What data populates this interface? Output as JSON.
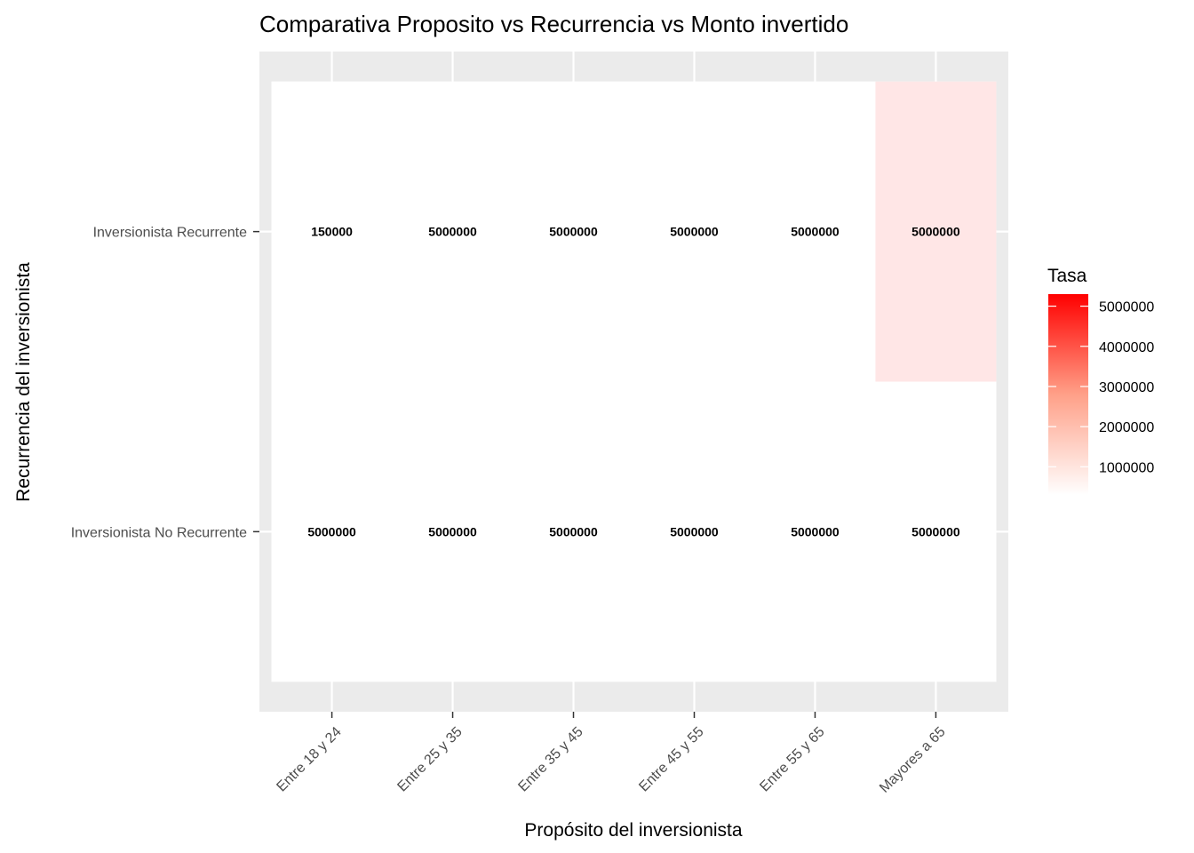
{
  "chart_data": {
    "type": "heatmap",
    "title": "Comparativa Proposito vs Recurrencia vs Monto invertido",
    "xlabel": "Propósito del inversionista",
    "ylabel": "Recurrencia del inversionista",
    "x_categories": [
      "Entre 18 y 24",
      "Entre 25 y 35",
      "Entre 35 y 45",
      "Entre 45 y 55",
      "Entre 55 y 65",
      "Mayores a 65"
    ],
    "y_categories": [
      "Inversionista No Recurrente",
      "Inversionista Recurrente"
    ],
    "cells": [
      {
        "x": "Entre 18 y 24",
        "y": "Inversionista No Recurrente",
        "value": 0,
        "label": "5000000"
      },
      {
        "x": "Entre 25 y 35",
        "y": "Inversionista No Recurrente",
        "value": 0,
        "label": "5000000"
      },
      {
        "x": "Entre 35 y 45",
        "y": "Inversionista No Recurrente",
        "value": 0,
        "label": "5000000"
      },
      {
        "x": "Entre 45 y 55",
        "y": "Inversionista No Recurrente",
        "value": 0,
        "label": "5000000"
      },
      {
        "x": "Entre 55 y 65",
        "y": "Inversionista No Recurrente",
        "value": 0,
        "label": "5000000"
      },
      {
        "x": "Mayores a 65",
        "y": "Inversionista No Recurrente",
        "value": 0,
        "label": "5000000"
      },
      {
        "x": "Entre 18 y 24",
        "y": "Inversionista Recurrente",
        "value": 0,
        "label": "150000"
      },
      {
        "x": "Entre 25 y 35",
        "y": "Inversionista Recurrente",
        "value": 0,
        "label": "5000000"
      },
      {
        "x": "Entre 35 y 45",
        "y": "Inversionista Recurrente",
        "value": 0,
        "label": "5000000"
      },
      {
        "x": "Entre 45 y 55",
        "y": "Inversionista Recurrente",
        "value": 0,
        "label": "5000000"
      },
      {
        "x": "Entre 55 y 65",
        "y": "Inversionista Recurrente",
        "value": 0,
        "label": "5000000"
      },
      {
        "x": "Mayores a 65",
        "y": "Inversionista Recurrente",
        "value": 800000,
        "label": "5000000"
      }
    ],
    "legend": {
      "title": "Tasa",
      "position": "right",
      "min": 300000,
      "max": 5300000,
      "low_color": "#ffffff",
      "high_color": "#ff0000",
      "ticks": [
        5000000,
        4000000,
        3000000,
        2000000,
        1000000
      ],
      "tick_labels": [
        "5000000",
        "4000000",
        "3000000",
        "2000000",
        "1000000"
      ]
    },
    "panel_background": "#ebebeb",
    "grid_color": "#ffffff",
    "grid": true
  }
}
